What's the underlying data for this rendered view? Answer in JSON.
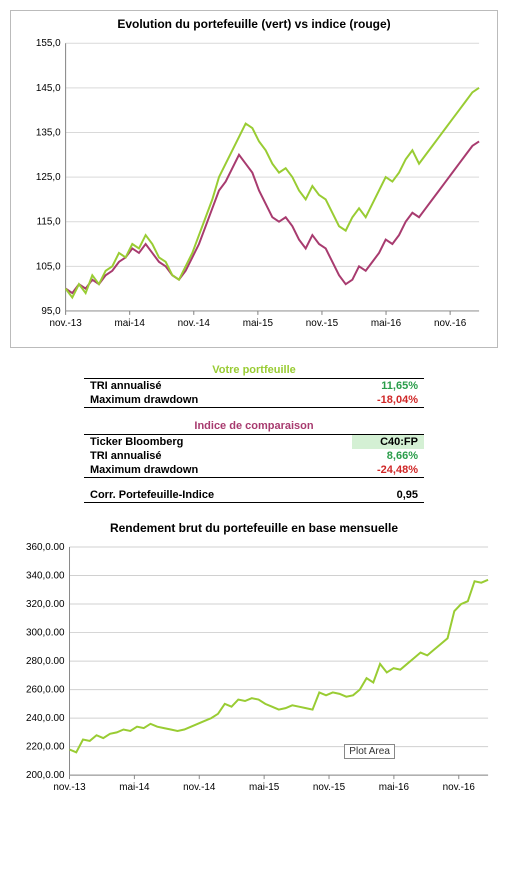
{
  "chart1": {
    "type": "line",
    "title": "Evolution du portefeuille (vert) vs indice (rouge)",
    "ylim": [
      95,
      155
    ],
    "ytick_step": 10,
    "xticks": [
      "nov.-13",
      "mai-14",
      "nov.-14",
      "mai-15",
      "nov.-15",
      "mai-16",
      "nov.-16"
    ],
    "background_color": "#ffffff",
    "grid_color": "#d9d9d9",
    "axis_color": "#808080",
    "label_fontsize": 10,
    "title_fontsize": 12,
    "series": {
      "portfolio": {
        "color": "#99cc33",
        "line_width": 2,
        "values": [
          100,
          98,
          101,
          99,
          103,
          101,
          104,
          105,
          108,
          107,
          110,
          109,
          112,
          110,
          107,
          106,
          103,
          102,
          105,
          108,
          112,
          116,
          120,
          125,
          128,
          131,
          134,
          137,
          136,
          133,
          131,
          128,
          126,
          127,
          125,
          122,
          120,
          123,
          121,
          120,
          117,
          114,
          113,
          116,
          118,
          116,
          119,
          122,
          125,
          124,
          126,
          129,
          131,
          128,
          130,
          132,
          134,
          136,
          138,
          140,
          142,
          144,
          145
        ]
      },
      "index": {
        "color": "#a83b6f",
        "line_width": 2,
        "values": [
          100,
          99,
          101,
          100,
          102,
          101,
          103,
          104,
          106,
          107,
          109,
          108,
          110,
          108,
          106,
          105,
          103,
          102,
          104,
          107,
          110,
          114,
          118,
          122,
          124,
          127,
          130,
          128,
          126,
          122,
          119,
          116,
          115,
          116,
          114,
          111,
          109,
          112,
          110,
          109,
          106,
          103,
          101,
          102,
          105,
          104,
          106,
          108,
          111,
          110,
          112,
          115,
          117,
          116,
          118,
          120,
          122,
          124,
          126,
          128,
          130,
          132,
          133
        ]
      }
    }
  },
  "stats": {
    "portfolio": {
      "header": "Votre portfeuille",
      "rows": [
        {
          "label": "TRI annualisé",
          "value": "11,65%",
          "cls": "pos"
        },
        {
          "label": "Maximum drawdown",
          "value": "-18,04%",
          "cls": "neg"
        }
      ]
    },
    "index": {
      "header": "Indice de comparaison",
      "rows": [
        {
          "label": "Ticker Bloomberg",
          "value": "C40:FP",
          "cls": "tick-cell"
        },
        {
          "label": "TRI annualisé",
          "value": "8,66%",
          "cls": "pos"
        },
        {
          "label": "Maximum drawdown",
          "value": "-24,48%",
          "cls": "neg"
        }
      ]
    },
    "corr": {
      "label": "Corr. Portefeuille-Indice",
      "value": "0,95"
    }
  },
  "chart2": {
    "type": "line",
    "title": "Rendement brut du portefeuille en base mensuelle",
    "ylim": [
      200000,
      360000
    ],
    "ytick_step": 20000,
    "xticks": [
      "nov.-13",
      "mai-14",
      "nov.-14",
      "mai-15",
      "nov.-15",
      "mai-16",
      "nov.-16"
    ],
    "background_color": "#ffffff",
    "grid_color": "#d0d0d0",
    "axis_color": "#888888",
    "label_fontsize": 10,
    "title_fontsize": 12,
    "series_color": "#99cc33",
    "line_width": 2,
    "values": [
      218,
      216,
      225,
      224,
      228,
      226,
      229,
      230,
      232,
      231,
      234,
      233,
      236,
      234,
      233,
      232,
      231,
      232,
      234,
      236,
      238,
      240,
      243,
      250,
      248,
      253,
      252,
      254,
      253,
      250,
      248,
      246,
      247,
      249,
      248,
      247,
      246,
      258,
      256,
      258,
      257,
      255,
      256,
      260,
      268,
      265,
      278,
      272,
      275,
      274,
      278,
      282,
      286,
      284,
      288,
      292,
      296,
      315,
      320,
      322,
      336,
      335,
      337
    ],
    "plot_area_tag": "Plot Area"
  }
}
